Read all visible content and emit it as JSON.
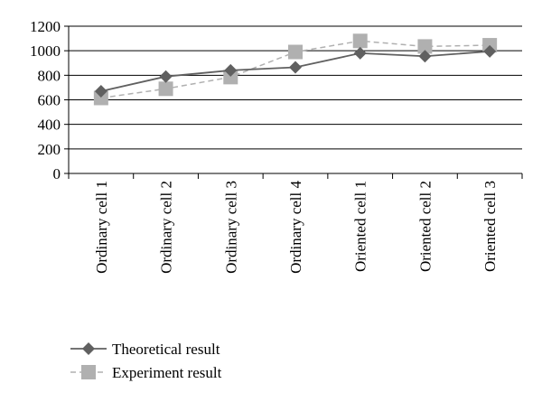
{
  "chart_data": {
    "type": "line",
    "categories": [
      "Ordinary cell 1",
      "Ordinary cell 2",
      "Ordinary cell 3",
      "Ordinary cell 4",
      "Oriented cell 1",
      "Oriented cell 2",
      "Oriented cell 3"
    ],
    "series": [
      {
        "name": "Theoretical result",
        "values": [
          670,
          790,
          840,
          865,
          980,
          955,
          995
        ],
        "color": "#606060",
        "marker": "diamond",
        "line_style": "solid"
      },
      {
        "name": "Experiment result",
        "values": [
          615,
          690,
          785,
          990,
          1080,
          1035,
          1045
        ],
        "color": "#b0b0b0",
        "marker": "square",
        "line_style": "dashed"
      }
    ],
    "yticks": [
      "0",
      "200",
      "400",
      "600",
      "800",
      "1000",
      "1200"
    ],
    "ylim": [
      0,
      1200
    ],
    "grid": true,
    "legend_position": "bottom-left"
  }
}
